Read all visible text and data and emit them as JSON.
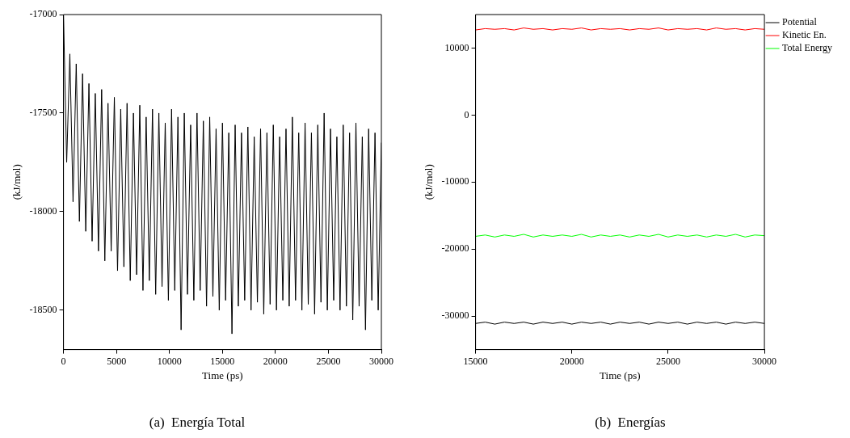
{
  "chart_data": [
    {
      "type": "line",
      "title": "(a)  Energía Total",
      "xlabel": "Time (ps)",
      "ylabel": "(kJ/mol)",
      "marker": "none",
      "legend": false,
      "xlim": [
        0,
        30000
      ],
      "xticks": [
        0,
        5000,
        10000,
        15000,
        20000,
        25000,
        30000
      ],
      "ylim": [
        -18700,
        -17000
      ],
      "yticks": [
        -18500,
        -18000,
        -17500,
        -17000
      ],
      "x": [
        0,
        300,
        600,
        900,
        1200,
        1500,
        1800,
        2100,
        2400,
        2700,
        3000,
        3300,
        3600,
        3900,
        4200,
        4500,
        4800,
        5100,
        5400,
        5700,
        6000,
        6300,
        6600,
        6900,
        7200,
        7500,
        7800,
        8100,
        8400,
        8700,
        9000,
        9300,
        9600,
        9900,
        10200,
        10500,
        10800,
        11100,
        11400,
        11700,
        12000,
        12300,
        12600,
        12900,
        13200,
        13500,
        13800,
        14100,
        14400,
        14700,
        15000,
        15300,
        15600,
        15900,
        16200,
        16500,
        16800,
        17100,
        17400,
        17700,
        18000,
        18300,
        18600,
        18900,
        19200,
        19500,
        19800,
        20100,
        20400,
        20700,
        21000,
        21300,
        21600,
        21900,
        22200,
        22500,
        22800,
        23100,
        23400,
        23700,
        24000,
        24300,
        24600,
        24900,
        25200,
        25500,
        25800,
        26100,
        26400,
        26700,
        27000,
        27300,
        27600,
        27900,
        28200,
        28500,
        28800,
        29100,
        29400,
        29700,
        30000
      ],
      "series": [
        {
          "color": "#000000",
          "values": [
            -17000,
            -17750,
            -17200,
            -17950,
            -17250,
            -18050,
            -17300,
            -18100,
            -17350,
            -18150,
            -17400,
            -18200,
            -17380,
            -18250,
            -17450,
            -18200,
            -17420,
            -18300,
            -17480,
            -18280,
            -17450,
            -18350,
            -17500,
            -18320,
            -17460,
            -18400,
            -17520,
            -18350,
            -17480,
            -18420,
            -17500,
            -18380,
            -17550,
            -18450,
            -17480,
            -18400,
            -17520,
            -18600,
            -17500,
            -18420,
            -17560,
            -18450,
            -17500,
            -18400,
            -17540,
            -18480,
            -17520,
            -18430,
            -17580,
            -18500,
            -17550,
            -18450,
            -17600,
            -18620,
            -17560,
            -18480,
            -17600,
            -18450,
            -17570,
            -18500,
            -17620,
            -18460,
            -17580,
            -18520,
            -17600,
            -18470,
            -17560,
            -18500,
            -17620,
            -18450,
            -17580,
            -18480,
            -17520,
            -18450,
            -17600,
            -18500,
            -17550,
            -18470,
            -17600,
            -18520,
            -17560,
            -18460,
            -17500,
            -18500,
            -17580,
            -18450,
            -17620,
            -18500,
            -17560,
            -18480,
            -17600,
            -18550,
            -17550,
            -18480,
            -17620,
            -18600,
            -17580,
            -18450,
            -17600,
            -18500,
            -17650
          ]
        }
      ]
    },
    {
      "type": "line",
      "title": "(b)  Energías",
      "xlabel": "Time (ps)",
      "ylabel": "(kJ/mol)",
      "marker": "none",
      "legend": "right",
      "xlim": [
        15000,
        30000
      ],
      "xticks": [
        15000,
        20000,
        25000,
        30000
      ],
      "ylim": [
        -35000,
        15000
      ],
      "yticks": [
        -30000,
        -20000,
        -10000,
        0,
        10000
      ],
      "x": [
        15000,
        15500,
        16000,
        16500,
        17000,
        17500,
        18000,
        18500,
        19000,
        19500,
        20000,
        20500,
        21000,
        21500,
        22000,
        22500,
        23000,
        23500,
        24000,
        24500,
        25000,
        25500,
        26000,
        26500,
        27000,
        27500,
        28000,
        28500,
        29000,
        29500,
        30000
      ],
      "series": [
        {
          "name": "Potential",
          "color": "#000000",
          "values": [
            -31100,
            -30900,
            -31200,
            -30900,
            -31100,
            -30900,
            -31200,
            -30900,
            -31100,
            -30900,
            -31200,
            -30900,
            -31100,
            -30900,
            -31200,
            -30900,
            -31100,
            -30900,
            -31200,
            -30900,
            -31100,
            -30900,
            -31200,
            -30900,
            -31100,
            -30900,
            -31200,
            -30900,
            -31100,
            -30900,
            -31100
          ]
        },
        {
          "name": "Kinetic En.",
          "color": "#ff0000",
          "values": [
            12700,
            12900,
            12800,
            12900,
            12700,
            13000,
            12800,
            12900,
            12700,
            12900,
            12800,
            13000,
            12700,
            12900,
            12800,
            12900,
            12700,
            12900,
            12800,
            13000,
            12700,
            12900,
            12800,
            12900,
            12700,
            13000,
            12800,
            12900,
            12700,
            12900,
            12800
          ]
        },
        {
          "name": "Total Energy",
          "color": "#00ff00",
          "values": [
            -18100,
            -17900,
            -18200,
            -17900,
            -18100,
            -17800,
            -18200,
            -17900,
            -18100,
            -17900,
            -18100,
            -17800,
            -18200,
            -17900,
            -18100,
            -17900,
            -18200,
            -17900,
            -18100,
            -17800,
            -18200,
            -17900,
            -18100,
            -17900,
            -18200,
            -17900,
            -18100,
            -17800,
            -18200,
            -17900,
            -18000
          ]
        }
      ]
    }
  ]
}
